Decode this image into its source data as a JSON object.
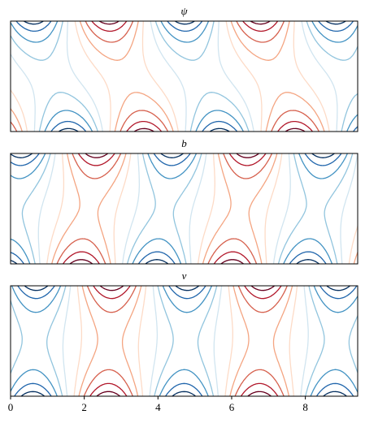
{
  "chart_data": [
    {
      "type": "contour",
      "title": "ψ",
      "xlim": [
        0,
        9.42
      ]
    },
    {
      "type": "contour",
      "title": "b",
      "xlim": [
        0,
        9.42
      ]
    },
    {
      "type": "contour",
      "title": "v",
      "xlim": [
        0,
        9.42
      ],
      "xticks": [
        0,
        2,
        4,
        6,
        8
      ]
    }
  ]
}
